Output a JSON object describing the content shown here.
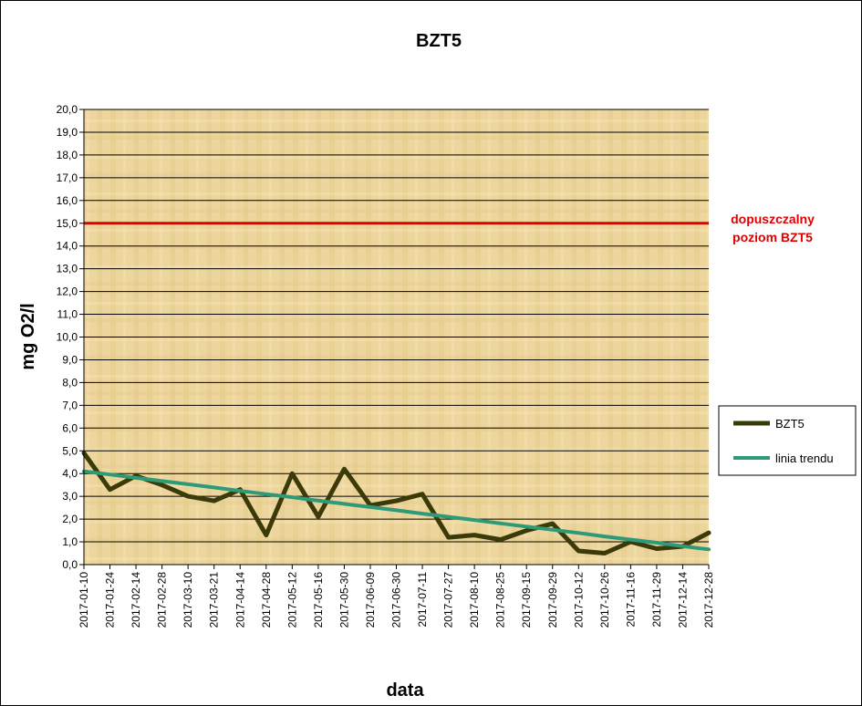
{
  "chart_data": {
    "type": "line",
    "title": "BZT5",
    "xlabel": "data",
    "ylabel": "mg O2/l",
    "ylim": [
      0,
      20
    ],
    "ytick_step": 1,
    "ytick_labels": [
      "0,0",
      "1,0",
      "2,0",
      "3,0",
      "4,0",
      "5,0",
      "6,0",
      "7,0",
      "8,0",
      "9,0",
      "10,0",
      "11,0",
      "12,0",
      "13,0",
      "14,0",
      "15,0",
      "16,0",
      "17,0",
      "18,0",
      "19,0",
      "20,0"
    ],
    "grid": true,
    "categories": [
      "2017-01-10",
      "2017-01-24",
      "2017-02-14",
      "2017-02-28",
      "2017-03-10",
      "2017-03-21",
      "2017-04-14",
      "2017-04-28",
      "2017-05-12",
      "2017-05-16",
      "2017-05-30",
      "2017-06-09",
      "2017-06-30",
      "2017-07-11",
      "2017-07-27",
      "2017-08-10",
      "2017-08-25",
      "2017-09-15",
      "2017-09-29",
      "2017-10-12",
      "2017-10-26",
      "2017-11-16",
      "2017-11-29",
      "2017-12-14",
      "2017-12-28"
    ],
    "series": [
      {
        "name": "BZT5",
        "color": "#3b3b0a",
        "values": [
          4.9,
          3.3,
          3.9,
          3.5,
          3.0,
          2.8,
          3.3,
          1.3,
          4.0,
          2.1,
          4.2,
          2.6,
          2.8,
          3.1,
          1.2,
          1.3,
          1.1,
          1.5,
          1.8,
          0.6,
          0.5,
          1.0,
          0.7,
          0.8,
          1.4
        ]
      },
      {
        "name": "linia trendu",
        "color": "#2e9a78",
        "values": [
          4.1,
          3.96,
          3.81,
          3.67,
          3.53,
          3.39,
          3.24,
          3.1,
          2.96,
          2.81,
          2.67,
          2.53,
          2.39,
          2.24,
          2.1,
          1.96,
          1.81,
          1.67,
          1.53,
          1.39,
          1.24,
          1.1,
          0.96,
          0.81,
          0.67
        ]
      }
    ],
    "reference_line": {
      "value": 15.0,
      "color": "#e00000",
      "label_lines": [
        "dopuszczalny",
        "poziom  BZT5"
      ]
    },
    "legend": {
      "placement": "right"
    },
    "colors": {
      "plot_background": "#ecd69e",
      "grid": "#000000"
    }
  }
}
